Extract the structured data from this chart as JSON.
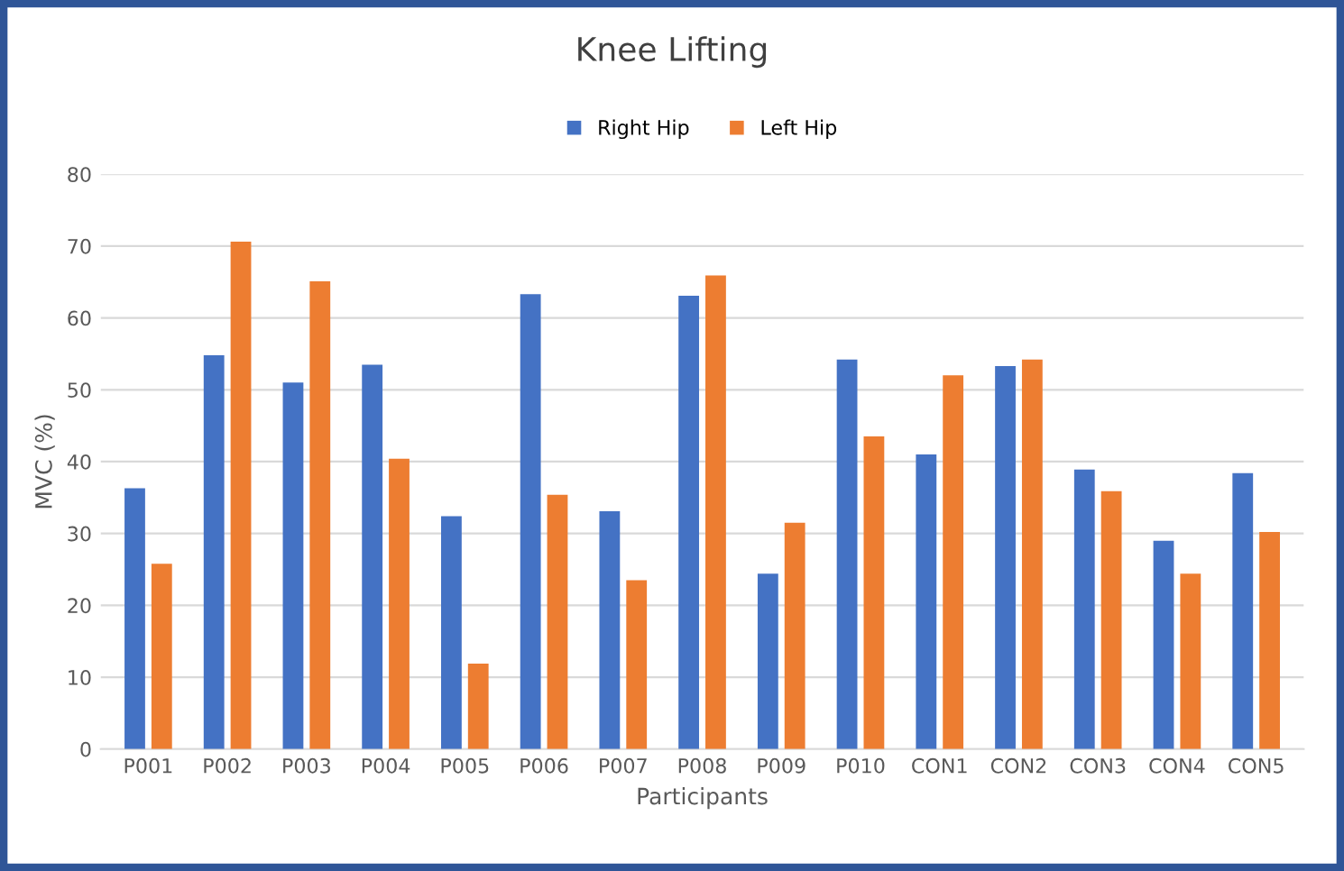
{
  "chart_data": {
    "type": "bar",
    "title": "Knee Lifting",
    "xlabel": "Participants",
    "ylabel": "MVC (%)",
    "categories": [
      "P001",
      "P002",
      "P003",
      "P004",
      "P005",
      "P006",
      "P007",
      "P008",
      "P009",
      "P010",
      "CON1",
      "CON2",
      "CON3",
      "CON4",
      "CON5"
    ],
    "series": [
      {
        "name": "Right Hip",
        "color": "#4472c4",
        "values": [
          36.3,
          54.8,
          51.0,
          53.5,
          32.4,
          63.3,
          33.1,
          63.1,
          24.4,
          54.2,
          41.0,
          53.3,
          38.9,
          29.0,
          38.4
        ]
      },
      {
        "name": "Left Hip",
        "color": "#ed7d31",
        "values": [
          25.8,
          70.6,
          65.1,
          40.4,
          11.9,
          35.4,
          23.5,
          65.9,
          31.5,
          43.5,
          52.0,
          54.2,
          35.9,
          24.4,
          30.2
        ]
      }
    ],
    "ylim": [
      0,
      80
    ],
    "yticks": [
      0,
      10,
      20,
      30,
      40,
      50,
      60,
      70,
      80
    ],
    "grid": "y",
    "legend": "top"
  }
}
